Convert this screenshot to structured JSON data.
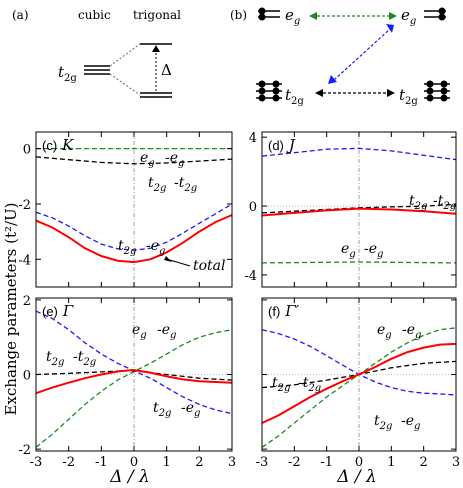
{
  "panel_a": {
    "tag": "(a)",
    "cubic": "cubic",
    "trigonal": "trigonal",
    "level": "t",
    "level_sub": "2g",
    "delta": "Δ"
  },
  "panel_b": {
    "tag": "(b)",
    "eg": "e",
    "eg_sub": "g",
    "t2g": "t",
    "t2g_sub": "2g"
  },
  "ylabel": "Exchange parameters (t²/U)",
  "xlabel": "Δ / λ",
  "colors": {
    "red": "#ff0000",
    "blue": "#1a1aff",
    "green": "#1e8a1e",
    "black": "#000000",
    "guide": "#888888"
  },
  "chart_data": [
    {
      "type": "line",
      "panel": "(c)",
      "symbol": "K",
      "xlim": [
        -3,
        3
      ],
      "ylim": [
        -5,
        0.6
      ],
      "xticks": [
        -3,
        -2,
        -1,
        0,
        1,
        2,
        3
      ],
      "yticks": [
        0,
        -2,
        -4
      ],
      "ytick_labels": [
        "0",
        "-2",
        "-4"
      ],
      "series": [
        {
          "name": "eg-eg",
          "color": "green",
          "style": "dashed",
          "x": [
            -3,
            3
          ],
          "y": [
            0,
            0
          ]
        },
        {
          "name": "t2g-t2g",
          "color": "black",
          "style": "dashed",
          "x": [
            -3,
            -2,
            -1,
            0,
            1,
            2,
            3
          ],
          "y": [
            -0.3,
            -0.4,
            -0.5,
            -0.55,
            -0.52,
            -0.45,
            -0.38
          ]
        },
        {
          "name": "t2g-eg",
          "color": "blue",
          "style": "dashed",
          "x": [
            -3,
            -2.5,
            -2,
            -1.5,
            -1,
            -0.5,
            0,
            0.5,
            1,
            1.5,
            2,
            2.5,
            3
          ],
          "y": [
            -2.3,
            -2.5,
            -2.8,
            -3.15,
            -3.45,
            -3.62,
            -3.67,
            -3.6,
            -3.38,
            -3.05,
            -2.7,
            -2.35,
            -2.0
          ]
        },
        {
          "name": "total",
          "color": "red",
          "style": "solid",
          "x": [
            -3,
            -2.5,
            -2,
            -1.5,
            -1,
            -0.5,
            0,
            0.5,
            1,
            1.5,
            2,
            2.5,
            3
          ],
          "y": [
            -2.6,
            -2.85,
            -3.2,
            -3.6,
            -3.88,
            -4.05,
            -4.1,
            -4.0,
            -3.75,
            -3.4,
            -3.0,
            -2.65,
            -2.4
          ]
        }
      ],
      "annotations": [
        "e",
        "g",
        "-e",
        "g",
        "t",
        "2g",
        "-t",
        "2g",
        "t",
        "2g",
        "-e",
        "g",
        "total"
      ]
    },
    {
      "type": "line",
      "panel": "(d)",
      "symbol": "J",
      "xlim": [
        -3,
        3
      ],
      "ylim": [
        -4.7,
        4.3
      ],
      "xticks": [
        -3,
        -2,
        -1,
        0,
        1,
        2,
        3
      ],
      "yticks": [
        4,
        0,
        -4
      ],
      "ytick_labels": [
        "4",
        "0",
        "-4"
      ],
      "series": [
        {
          "name": "blue",
          "color": "blue",
          "style": "dashed",
          "x": [
            -3,
            -2,
            -1,
            0,
            1,
            2,
            3
          ],
          "y": [
            2.9,
            3.1,
            3.3,
            3.35,
            3.2,
            2.95,
            2.7
          ]
        },
        {
          "name": "t2g-t2g",
          "color": "black",
          "style": "dashed",
          "x": [
            -3,
            -2,
            -1,
            0,
            1,
            2,
            3
          ],
          "y": [
            -0.4,
            -0.3,
            -0.2,
            -0.1,
            -0.05,
            0.0,
            0.1
          ]
        },
        {
          "name": "total",
          "color": "red",
          "style": "solid",
          "x": [
            -3,
            -2,
            -1,
            0,
            1,
            2,
            3
          ],
          "y": [
            -0.55,
            -0.4,
            -0.25,
            -0.15,
            -0.2,
            -0.3,
            -0.45
          ]
        },
        {
          "name": "eg-eg",
          "color": "green",
          "style": "dashed",
          "x": [
            -3,
            0,
            3
          ],
          "y": [
            -3.3,
            -3.25,
            -3.3
          ]
        }
      ],
      "annotations": [
        "t",
        "2g",
        "-t",
        "2g",
        "e",
        "g",
        "-e",
        "g"
      ]
    },
    {
      "type": "line",
      "panel": "(e)",
      "symbol": "Γ",
      "xlim": [
        -3,
        3
      ],
      "ylim": [
        -2.05,
        2.05
      ],
      "xticks": [
        -3,
        -2,
        -1,
        0,
        1,
        2,
        3
      ],
      "yticks": [
        2,
        0,
        -2
      ],
      "ytick_labels": [
        "2",
        "0",
        "-2"
      ],
      "series": [
        {
          "name": "blue",
          "color": "blue",
          "style": "dashed",
          "x": [
            -3,
            -2.5,
            -2,
            -1.5,
            -1,
            -0.5,
            0,
            0.5,
            1,
            1.5,
            2,
            2.5,
            3
          ],
          "y": [
            1.7,
            1.5,
            1.2,
            0.85,
            0.55,
            0.3,
            0.1,
            -0.1,
            -0.35,
            -0.6,
            -0.8,
            -0.95,
            -1.05
          ]
        },
        {
          "name": "green",
          "color": "green",
          "style": "dashed",
          "x": [
            -3,
            -2.5,
            -2,
            -1.5,
            -1,
            -0.5,
            0,
            0.5,
            1,
            1.5,
            2,
            2.5,
            3
          ],
          "y": [
            -1.95,
            -1.6,
            -1.2,
            -0.8,
            -0.45,
            -0.15,
            0.08,
            0.3,
            0.55,
            0.8,
            1.0,
            1.12,
            1.2
          ]
        },
        {
          "name": "black",
          "color": "black",
          "style": "dashed",
          "x": [
            -3,
            -2,
            -1,
            -0.3,
            0,
            1,
            2,
            3
          ],
          "y": [
            0.0,
            0.03,
            0.07,
            0.1,
            0.1,
            0.0,
            -0.1,
            -0.15
          ]
        },
        {
          "name": "total",
          "color": "red",
          "style": "solid",
          "x": [
            -3,
            -2.5,
            -2,
            -1.5,
            -1,
            -0.5,
            0,
            0.5,
            1,
            1.5,
            2,
            2.5,
            3
          ],
          "y": [
            -0.5,
            -0.35,
            -0.22,
            -0.1,
            0.0,
            0.08,
            0.12,
            0.05,
            -0.05,
            -0.13,
            -0.18,
            -0.2,
            -0.22
          ]
        }
      ],
      "annotations": [
        "e",
        "g",
        "-e",
        "g",
        "t",
        "2g",
        "-t",
        "2g",
        "t",
        "2g",
        "-e",
        "g"
      ]
    },
    {
      "type": "line",
      "panel": "(f)",
      "symbol": "Γ′",
      "xlim": [
        -3,
        3
      ],
      "ylim": [
        -2.05,
        2.05
      ],
      "xticks": [
        -3,
        -2,
        -1,
        0,
        1,
        2,
        3
      ],
      "yticks": [],
      "ytick_labels": [],
      "series": [
        {
          "name": "blue",
          "color": "blue",
          "style": "dashed",
          "x": [
            -3,
            -2.5,
            -2,
            -1.5,
            -1,
            -0.5,
            0,
            0.5,
            1,
            1.5,
            2,
            2.5,
            3
          ],
          "y": [
            1.2,
            1.1,
            0.95,
            0.75,
            0.5,
            0.25,
            0.0,
            -0.2,
            -0.35,
            -0.45,
            -0.5,
            -0.52,
            -0.55
          ]
        },
        {
          "name": "green",
          "color": "green",
          "style": "dashed",
          "x": [
            -3,
            -2.5,
            -2,
            -1.5,
            -1,
            -0.5,
            0,
            0.5,
            1,
            1.5,
            2,
            2.5,
            3
          ],
          "y": [
            -1.95,
            -1.65,
            -1.3,
            -0.95,
            -0.6,
            -0.3,
            0.0,
            0.3,
            0.6,
            0.85,
            1.05,
            1.2,
            1.25
          ]
        },
        {
          "name": "black",
          "color": "black",
          "style": "dashed",
          "x": [
            -3,
            -2,
            -1,
            0,
            1,
            2,
            3
          ],
          "y": [
            -0.35,
            -0.28,
            -0.15,
            0.0,
            0.18,
            0.3,
            0.35
          ]
        },
        {
          "name": "total",
          "color": "red",
          "style": "solid",
          "x": [
            -3,
            -2.5,
            -2,
            -1.5,
            -1,
            -0.5,
            0,
            0.5,
            1,
            1.5,
            2,
            2.5,
            3
          ],
          "y": [
            -1.3,
            -1.1,
            -0.85,
            -0.6,
            -0.38,
            -0.18,
            0.0,
            0.2,
            0.42,
            0.6,
            0.72,
            0.8,
            0.82
          ]
        }
      ],
      "annotations": [
        "e",
        "g",
        "-e",
        "g",
        "t",
        "2g",
        "-t",
        "2g",
        "t",
        "2g",
        "-e",
        "g"
      ]
    }
  ],
  "xtick_labels": [
    "-3",
    "-2",
    "-1",
    "0",
    "1",
    "2",
    "3"
  ]
}
